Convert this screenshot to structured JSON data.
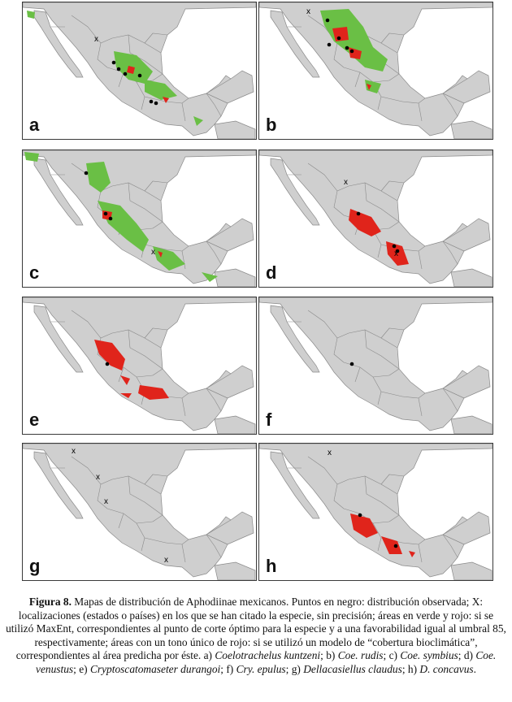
{
  "figure": {
    "panels": [
      {
        "label": "a",
        "id": "a"
      },
      {
        "label": "b",
        "id": "b"
      },
      {
        "label": "c",
        "id": "c"
      },
      {
        "label": "d",
        "id": "d"
      },
      {
        "label": "e",
        "id": "e"
      },
      {
        "label": "f",
        "id": "f"
      },
      {
        "label": "g",
        "id": "g"
      },
      {
        "label": "h",
        "id": "h"
      }
    ],
    "colors": {
      "land": "#cfcfcf",
      "border": "#8a8a8a",
      "sea": "#ffffff",
      "green": "#6abf45",
      "red": "#e0241b",
      "dot": "#000000"
    }
  },
  "caption": {
    "lead": "Figura 8.",
    "p1": " Mapas de distribución de Aphodiinae mexicanos. Puntos en negro: distribución observada; X: localizaciones (estados o países) en los que se han citado la especie, sin precisión; áreas en verde y rojo: si se utilizó MaxEnt, correspondientes al punto de corte óptimo para la especie y a una favorabilidad igual al umbral 85, respectivamente; áreas con un tono único de rojo: si se utilizó un modelo de “cobertura bioclimática”, correspondientes al área predicha por éste. a) ",
    "sp_a": "Coelotrachelus kuntzeni",
    "p2": "; b) ",
    "sp_b": "Coe. rudis",
    "p3": "; c) ",
    "sp_c": "Coe. symbius",
    "p4": "; d) ",
    "sp_d": "Coe. venustus",
    "p5": "; e) ",
    "sp_e": "Cryptoscatomaseter durangoi",
    "p6": "; f) ",
    "sp_f": "Cry. epulus",
    "p7": "; g) ",
    "sp_g": "Dellacasiellus claudus",
    "p8": "; h) ",
    "sp_h": "D. concavus",
    "p9": "."
  }
}
